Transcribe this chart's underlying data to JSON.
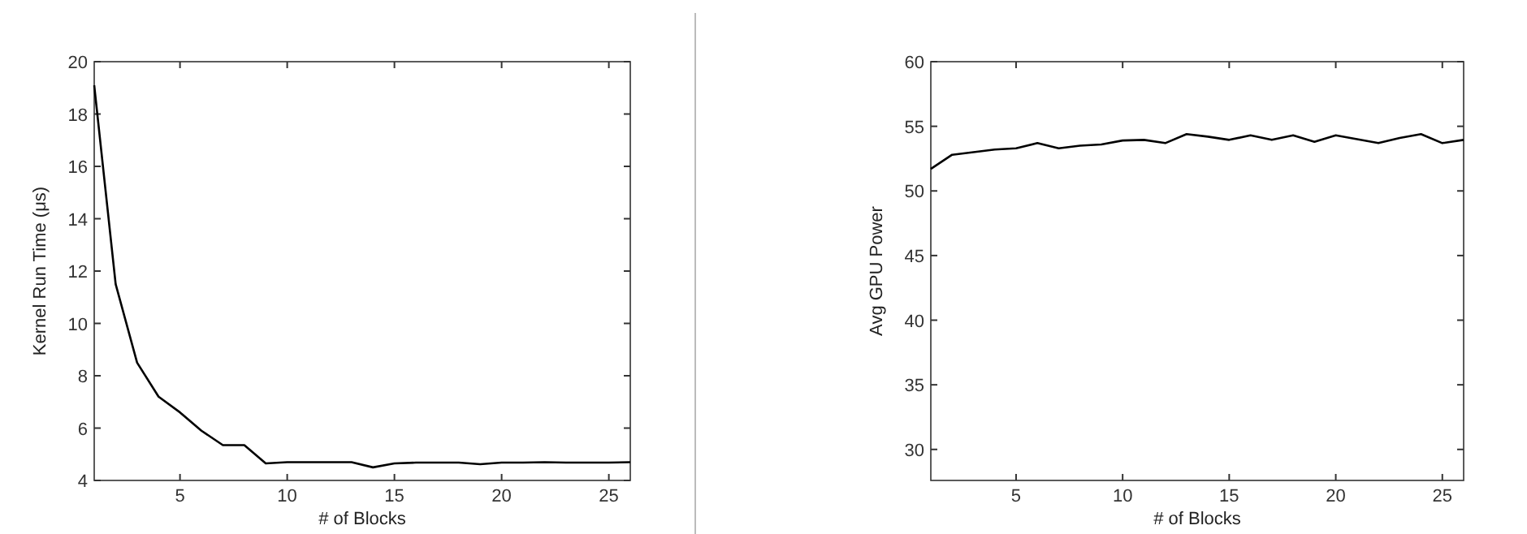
{
  "chart_data": [
    {
      "type": "line",
      "xlabel": "# of Blocks",
      "ylabel": "Kernel Run Time (μs)",
      "xlim": [
        1,
        26
      ],
      "ylim": [
        4,
        20
      ],
      "xticks": [
        5,
        10,
        15,
        20,
        25
      ],
      "yticks": [
        4,
        6,
        8,
        10,
        12,
        14,
        16,
        18,
        20
      ],
      "grid": false,
      "x": [
        1,
        2,
        3,
        4,
        5,
        6,
        7,
        8,
        9,
        10,
        11,
        12,
        13,
        14,
        15,
        16,
        17,
        18,
        19,
        20,
        21,
        22,
        23,
        24,
        25,
        26
      ],
      "series": [
        {
          "color": "#000000",
          "values": [
            19.1,
            11.5,
            8.5,
            7.2,
            6.6,
            5.9,
            5.35,
            5.35,
            4.65,
            4.7,
            4.7,
            4.7,
            4.7,
            4.5,
            4.65,
            4.68,
            4.68,
            4.68,
            4.62,
            4.68,
            4.68,
            4.7,
            4.68,
            4.68,
            4.68,
            4.7
          ]
        }
      ]
    },
    {
      "type": "line",
      "xlabel": "# of Blocks",
      "ylabel": "Avg GPU Power",
      "xlim": [
        1,
        26
      ],
      "ylim": [
        27.6,
        60
      ],
      "xticks": [
        5,
        10,
        15,
        20,
        25
      ],
      "yticks": [
        30,
        35,
        40,
        45,
        50,
        55,
        60
      ],
      "grid": false,
      "x": [
        1,
        2,
        3,
        4,
        5,
        6,
        7,
        8,
        9,
        10,
        11,
        12,
        13,
        14,
        15,
        16,
        17,
        18,
        19,
        20,
        21,
        22,
        23,
        24,
        25,
        26
      ],
      "series": [
        {
          "color": "#000000",
          "values": [
            51.7,
            52.8,
            53.0,
            53.2,
            53.3,
            53.7,
            53.3,
            53.5,
            53.6,
            53.9,
            53.95,
            53.7,
            54.4,
            54.2,
            53.95,
            54.3,
            53.95,
            54.3,
            53.8,
            54.3,
            54.0,
            53.7,
            54.1,
            54.4,
            53.7,
            53.95
          ]
        }
      ]
    }
  ]
}
